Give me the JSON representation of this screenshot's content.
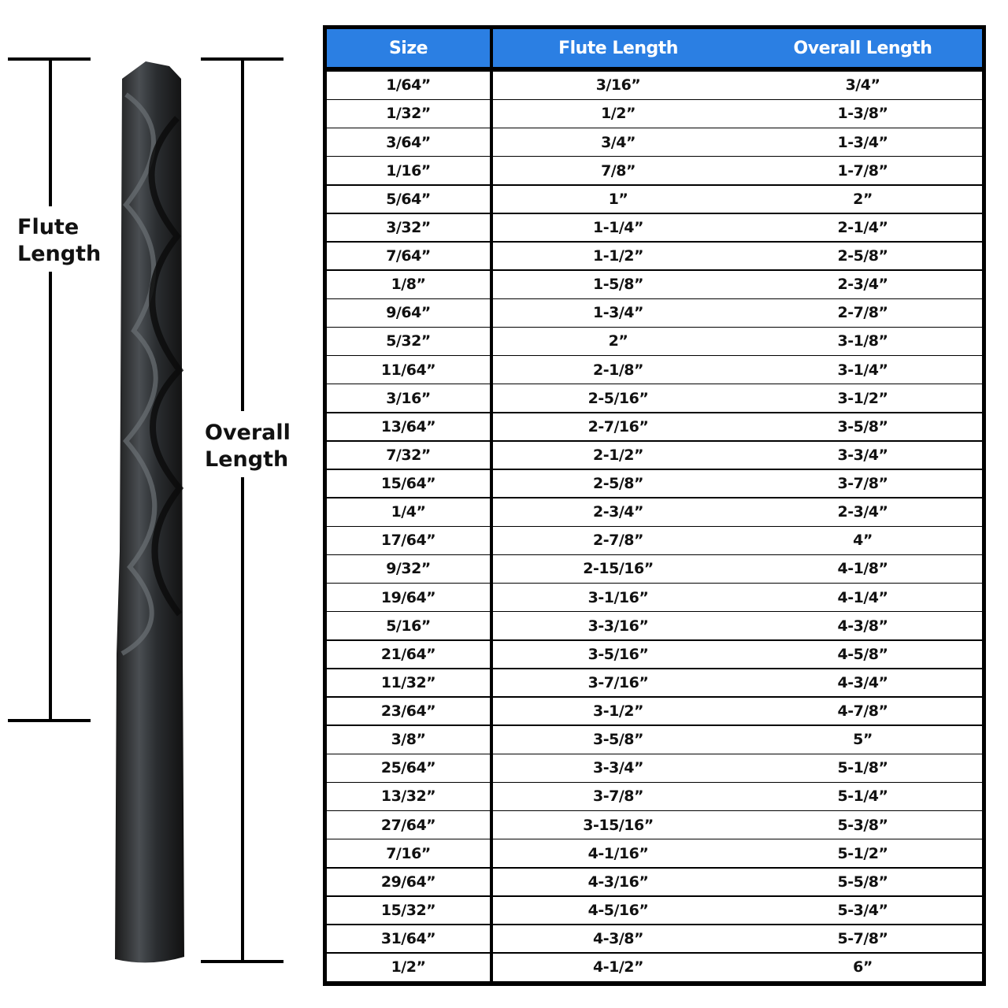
{
  "labels": {
    "flute": [
      "Flute",
      "Length"
    ],
    "overall": [
      "Overall",
      "Length"
    ]
  },
  "table": {
    "headers": [
      "Size",
      "Flute Length",
      "Overall Length"
    ],
    "rows": [
      [
        "1/64”",
        "3/16”",
        "3/4”"
      ],
      [
        "1/32”",
        "1/2”",
        "1-3/8”"
      ],
      [
        "3/64”",
        "3/4”",
        "1-3/4”"
      ],
      [
        "1/16”",
        "7/8”",
        "1-7/8”"
      ],
      [
        "5/64”",
        "1”",
        "2”"
      ],
      [
        "3/32”",
        "1-1/4”",
        "2-1/4”"
      ],
      [
        "7/64”",
        "1-1/2”",
        "2-5/8”"
      ],
      [
        "1/8”",
        "1-5/8”",
        "2-3/4”"
      ],
      [
        "9/64”",
        "1-3/4”",
        "2-7/8”"
      ],
      [
        "5/32”",
        "2”",
        "3-1/8”"
      ],
      [
        "11/64”",
        "2-1/8”",
        "3-1/4”"
      ],
      [
        "3/16”",
        "2-5/16”",
        "3-1/2”"
      ],
      [
        "13/64”",
        "2-7/16”",
        "3-5/8”"
      ],
      [
        "7/32”",
        "2-1/2”",
        "3-3/4”"
      ],
      [
        "15/64”",
        "2-5/8”",
        "3-7/8”"
      ],
      [
        "1/4”",
        "2-3/4”",
        "2-3/4”"
      ],
      [
        "17/64”",
        "2-7/8”",
        "4”"
      ],
      [
        "9/32”",
        "2-15/16”",
        "4-1/8”"
      ],
      [
        "19/64”",
        "3-1/16”",
        "4-1/4”"
      ],
      [
        "5/16”",
        "3-3/16”",
        "4-3/8”"
      ],
      [
        "21/64”",
        "3-5/16”",
        "4-5/8”"
      ],
      [
        "11/32”",
        "3-7/16”",
        "4-3/4”"
      ],
      [
        "23/64”",
        "3-1/2”",
        "4-7/8”"
      ],
      [
        "3/8”",
        "3-5/8”",
        "5”"
      ],
      [
        "25/64”",
        "3-3/4”",
        "5-1/8”"
      ],
      [
        "13/32”",
        "3-7/8”",
        "5-1/4”"
      ],
      [
        "27/64”",
        "3-15/16”",
        "5-3/8”"
      ],
      [
        "7/16”",
        "4-1/16”",
        "5-1/2”"
      ],
      [
        "29/64”",
        "4-3/16”",
        "5-5/8”"
      ],
      [
        "15/32”",
        "4-5/16”",
        "5-3/4”"
      ],
      [
        "31/64”",
        "4-3/8”",
        "5-7/8”"
      ],
      [
        "1/2”",
        "4-1/2”",
        "6”"
      ]
    ]
  }
}
